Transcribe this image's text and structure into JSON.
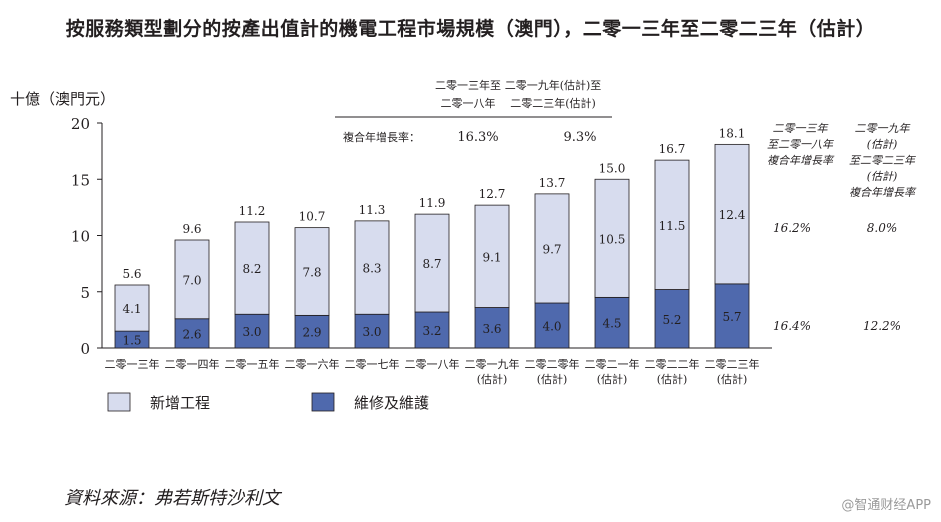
{
  "title": "按服務類型劃分的按產出值計的機電工程市場規模（澳門），二零一三年至二零二三年（估計）",
  "unit_label": "十億（澳門元）",
  "source": "資料來源：弗若斯特沙利文",
  "watermark": "@智通财经APP",
  "cagr_table": {
    "header_1": [
      "二零一三年至",
      "二零一八年"
    ],
    "header_2": [
      "二零一九年(估計)至",
      "二零二三年(估計)"
    ],
    "row_label": "複合年增長率：",
    "value_1": "16.3%",
    "value_2": "9.3%"
  },
  "side_cagr": {
    "header_1": [
      "二零一三年",
      "至二零一八年",
      "複合年增長率"
    ],
    "header_2": [
      "二零一九年",
      "(估計)",
      "至二零二三年",
      "(估計)",
      "複合年增長率"
    ],
    "new_works": [
      "16.2%",
      "8.0%"
    ],
    "maintenance": [
      "16.4%",
      "12.2%"
    ]
  },
  "colors": {
    "new_works": "#d7dcee",
    "maintenance": "#4f69ad",
    "axis": "#231f20"
  },
  "chart_data": {
    "type": "bar",
    "stacked": true,
    "categories": [
      [
        "二零一三年"
      ],
      [
        "二零一四年"
      ],
      [
        "二零一五年"
      ],
      [
        "二零一六年"
      ],
      [
        "二零一七年"
      ],
      [
        "二零一八年"
      ],
      [
        "二零一九年",
        "(估計)"
      ],
      [
        "二零二零年",
        "(估計)"
      ],
      [
        "二零二一年",
        "(估計)"
      ],
      [
        "二零二二年",
        "(估計)"
      ],
      [
        "二零二三年",
        "(估計)"
      ]
    ],
    "series": [
      {
        "name": "維修及維護",
        "values": [
          1.5,
          2.6,
          3.0,
          2.9,
          3.0,
          3.2,
          3.6,
          4.0,
          4.5,
          5.2,
          5.7
        ]
      },
      {
        "name": "新增工程",
        "values": [
          4.1,
          7.0,
          8.2,
          7.8,
          8.3,
          8.7,
          9.1,
          9.7,
          10.5,
          11.5,
          12.4
        ]
      }
    ],
    "totals": [
      5.6,
      9.6,
      11.2,
      10.7,
      11.3,
      11.9,
      12.7,
      13.7,
      15.0,
      16.7,
      18.1
    ],
    "yticks": [
      0,
      5,
      10,
      15,
      20
    ],
    "ylim": [
      0,
      20
    ],
    "legend": [
      "新增工程",
      "維修及維護"
    ]
  }
}
